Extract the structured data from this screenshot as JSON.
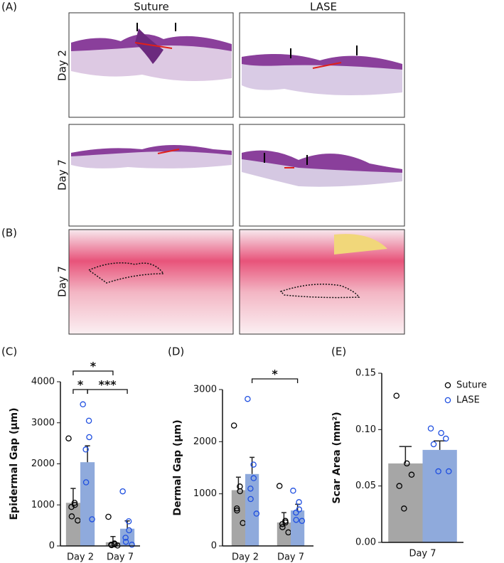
{
  "figure": {
    "panel_a": {
      "label": "(A)",
      "columns": [
        "Suture",
        "LASE"
      ],
      "rows": [
        "Day 2",
        "Day 7"
      ]
    },
    "panel_b": {
      "label": "(B)",
      "rows": [
        "Day 7"
      ]
    }
  },
  "chart_data": [
    {
      "type": "bar",
      "panel": "(C)",
      "y_label": "Epidermal Gap (µm)",
      "categories": [
        "Day 2",
        "Day 7"
      ],
      "ylim": [
        0,
        4000
      ],
      "yticks": [
        0,
        1000,
        2000,
        3000,
        4000
      ],
      "legend": false,
      "series": [
        {
          "color": "#a6a6a6",
          "point_color": "#000000",
          "values": [
            1050,
            90
          ],
          "errors": [
            350,
            140
          ],
          "points": [
            [
              2620,
              1050,
              1000,
              950,
              720,
              620
            ],
            [
              710,
              60,
              40,
              30,
              20,
              10
            ]
          ]
        },
        {
          "color": "#8faadc",
          "point_color": "#1f4fe0",
          "values": [
            2040,
            420
          ],
          "errors": [
            400,
            190
          ],
          "points": [
            [
              3450,
              3050,
              2650,
              2350,
              1550,
              650
            ],
            [
              1330,
              600,
              380,
              200,
              100,
              30
            ]
          ]
        }
      ],
      "brackets": [
        {
          "from": [
            0,
            0
          ],
          "to": [
            1,
            0
          ],
          "label": "*"
        },
        {
          "from": [
            0,
            0
          ],
          "to": [
            0,
            1
          ],
          "label": "*"
        },
        {
          "from": [
            0,
            1
          ],
          "to": [
            1,
            1
          ],
          "label": "***"
        }
      ]
    },
    {
      "type": "bar",
      "panel": "(D)",
      "y_label": "Dermal Gap (µm)",
      "categories": [
        "Day 2",
        "Day 7"
      ],
      "ylim": [
        0,
        3000
      ],
      "yticks": [
        0,
        1000,
        2000,
        3000
      ],
      "legend": false,
      "series": [
        {
          "color": "#a6a6a6",
          "point_color": "#000000",
          "values": [
            1070,
            450
          ],
          "errors": [
            250,
            190
          ],
          "points": [
            [
              2310,
              1140,
              1050,
              720,
              680,
              440
            ],
            [
              1150,
              480,
              450,
              420,
              360,
              260
            ]
          ]
        },
        {
          "color": "#8faadc",
          "point_color": "#1f4fe0",
          "values": [
            1380,
            680
          ],
          "errors": [
            320,
            120
          ],
          "points": [
            [
              2820,
              1560,
              1300,
              1100,
              900,
              620
            ],
            [
              1060,
              840,
              700,
              640,
              500,
              480
            ]
          ]
        }
      ],
      "brackets": [
        {
          "from": [
            0,
            1
          ],
          "to": [
            1,
            1
          ],
          "label": "*"
        }
      ]
    },
    {
      "type": "bar",
      "panel": "(E)",
      "y_label": "Scar Area (mm²)",
      "categories": [
        "Day 7"
      ],
      "ylim": [
        0,
        0.15
      ],
      "yticks": [
        {
          "value": 0,
          "label": "0.00"
        },
        {
          "value": 0.05,
          "label": "0.05"
        },
        {
          "value": 0.1,
          "label": "0.10"
        },
        {
          "value": 0.15,
          "label": "0.15"
        }
      ],
      "legend": "upper right",
      "series": [
        {
          "name": "Suture",
          "color": "#a6a6a6",
          "point_color": "#000000",
          "values": [
            0.07
          ],
          "errors": [
            0.015
          ],
          "points": [
            [
              0.13,
              0.07,
              0.06,
              0.05,
              0.03
            ]
          ]
        },
        {
          "name": "LASE",
          "color": "#8faadc",
          "point_color": "#1f4fe0",
          "values": [
            0.082
          ],
          "errors": [
            0.008
          ],
          "points": [
            [
              0.101,
              0.097,
              0.092,
              0.087,
              0.063,
              0.063
            ]
          ]
        }
      ],
      "brackets": []
    }
  ]
}
